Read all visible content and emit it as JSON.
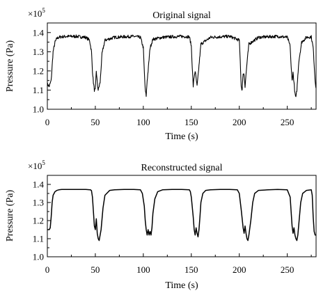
{
  "chart_data": [
    {
      "type": "line",
      "title": "Original signal",
      "xlabel": "Time (s)",
      "ylabel": "Pressure (Pa)",
      "y_multiplier": "×10",
      "y_multiplier_exp": "5",
      "xlim": [
        0,
        280
      ],
      "ylim": [
        1.0,
        1.45
      ],
      "x_ticks": [
        0,
        50,
        100,
        150,
        200,
        250
      ],
      "x_tick_labels": [
        "0",
        "50",
        "100",
        "150",
        "200",
        "250"
      ],
      "y_ticks": [
        1.0,
        1.1,
        1.2,
        1.3,
        1.4
      ],
      "y_tick_labels": [
        "1.0",
        "1.1",
        "1.2",
        "1.3",
        "1.4"
      ],
      "noisy": true,
      "x": [
        0,
        2,
        4,
        6,
        8,
        10,
        12,
        15,
        20,
        30,
        40,
        44,
        46,
        47,
        48,
        49,
        50,
        51,
        52,
        53,
        55,
        57,
        60,
        70,
        80,
        90,
        97,
        100,
        101,
        102,
        103,
        104,
        105,
        107,
        110,
        120,
        130,
        140,
        148,
        150,
        151,
        152,
        153,
        154,
        155,
        156,
        157,
        160,
        170,
        180,
        190,
        200,
        201,
        202,
        203,
        204,
        205,
        206,
        208,
        210,
        220,
        230,
        240,
        250,
        253,
        254,
        255,
        256,
        257,
        258,
        259,
        260,
        262,
        265,
        270,
        275,
        277,
        279,
        280
      ],
      "y": [
        1.13,
        1.12,
        1.15,
        1.3,
        1.35,
        1.37,
        1.375,
        1.378,
        1.38,
        1.38,
        1.375,
        1.36,
        1.3,
        1.2,
        1.14,
        1.1,
        1.1,
        1.2,
        1.14,
        1.1,
        1.14,
        1.29,
        1.36,
        1.375,
        1.378,
        1.38,
        1.375,
        1.32,
        1.2,
        1.1,
        1.07,
        1.15,
        1.2,
        1.32,
        1.365,
        1.375,
        1.378,
        1.38,
        1.378,
        1.33,
        1.22,
        1.12,
        1.17,
        1.2,
        1.16,
        1.12,
        1.17,
        1.34,
        1.375,
        1.378,
        1.38,
        1.36,
        1.25,
        1.12,
        1.1,
        1.19,
        1.18,
        1.12,
        1.24,
        1.34,
        1.375,
        1.378,
        1.38,
        1.375,
        1.33,
        1.22,
        1.15,
        1.19,
        1.14,
        1.08,
        1.06,
        1.1,
        1.25,
        1.35,
        1.375,
        1.378,
        1.32,
        1.15,
        1.11
      ]
    },
    {
      "type": "line",
      "title": "Reconstructed signal",
      "xlabel": "Time (s)",
      "ylabel": "Pressure (Pa)",
      "y_multiplier": "×10",
      "y_multiplier_exp": "5",
      "xlim": [
        0,
        280
      ],
      "ylim": [
        1.0,
        1.45
      ],
      "x_ticks": [
        0,
        50,
        100,
        150,
        200,
        250
      ],
      "x_tick_labels": [
        "0",
        "50",
        "100",
        "150",
        "200",
        "250"
      ],
      "y_ticks": [
        1.0,
        1.1,
        1.2,
        1.3,
        1.4
      ],
      "y_tick_labels": [
        "1.0",
        "1.1",
        "1.2",
        "1.3",
        "1.4"
      ],
      "noisy": false,
      "x": [
        0,
        2,
        3,
        4,
        5,
        6,
        8,
        10,
        12,
        15,
        20,
        30,
        40,
        45,
        46,
        47,
        48,
        49,
        50,
        51,
        52,
        53,
        54,
        56,
        58,
        60,
        65,
        70,
        80,
        90,
        97,
        99,
        101,
        102,
        103,
        104,
        105,
        106,
        107,
        108,
        109,
        110,
        112,
        115,
        120,
        130,
        140,
        148,
        149,
        150,
        152,
        153,
        154,
        155,
        156,
        157,
        158,
        159,
        160,
        162,
        165,
        170,
        180,
        190,
        198,
        200,
        202,
        204,
        205,
        206,
        207,
        208,
        209,
        210,
        212,
        214,
        216,
        220,
        230,
        240,
        250,
        253,
        254,
        255,
        256,
        257,
        258,
        259,
        260,
        261,
        262,
        264,
        266,
        270,
        275,
        276,
        277,
        278,
        279,
        280
      ],
      "y": [
        1.15,
        1.15,
        1.16,
        1.22,
        1.3,
        1.34,
        1.36,
        1.367,
        1.37,
        1.372,
        1.372,
        1.372,
        1.372,
        1.37,
        1.365,
        1.33,
        1.25,
        1.17,
        1.15,
        1.21,
        1.13,
        1.1,
        1.09,
        1.15,
        1.27,
        1.34,
        1.367,
        1.37,
        1.372,
        1.372,
        1.37,
        1.35,
        1.28,
        1.2,
        1.15,
        1.12,
        1.15,
        1.12,
        1.14,
        1.12,
        1.16,
        1.24,
        1.32,
        1.36,
        1.37,
        1.372,
        1.372,
        1.37,
        1.36,
        1.33,
        1.22,
        1.15,
        1.12,
        1.16,
        1.13,
        1.11,
        1.15,
        1.22,
        1.3,
        1.35,
        1.367,
        1.37,
        1.372,
        1.372,
        1.37,
        1.35,
        1.26,
        1.16,
        1.13,
        1.17,
        1.13,
        1.1,
        1.09,
        1.12,
        1.2,
        1.3,
        1.35,
        1.367,
        1.37,
        1.372,
        1.37,
        1.33,
        1.25,
        1.17,
        1.13,
        1.16,
        1.12,
        1.1,
        1.09,
        1.12,
        1.18,
        1.3,
        1.35,
        1.367,
        1.37,
        1.34,
        1.22,
        1.14,
        1.12,
        1.12
      ]
    }
  ]
}
